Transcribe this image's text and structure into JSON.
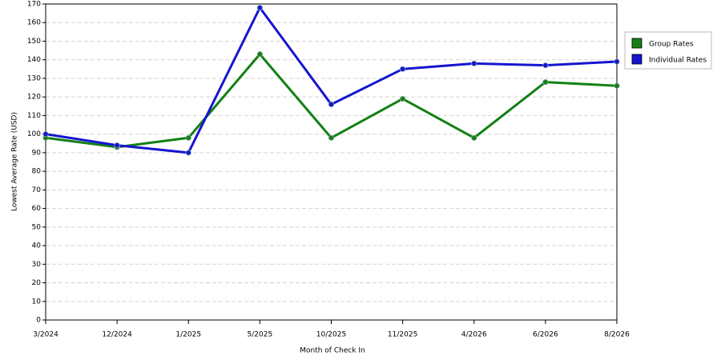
{
  "chart_data": {
    "type": "line",
    "x_label": "Month of Check In",
    "y_label": "Lowest Average Rate (USD)",
    "categories": [
      "3/2024",
      "12/2024",
      "1/2025",
      "5/2025",
      "10/2025",
      "11/2025",
      "4/2026",
      "6/2026",
      "8/2026"
    ],
    "series": [
      {
        "name": "Group Rates",
        "color": "#138013",
        "values": [
          98,
          93,
          98,
          143,
          98,
          119,
          98,
          128,
          126
        ]
      },
      {
        "name": "Individual Rates",
        "color": "#1515d0",
        "values": [
          100,
          94,
          90,
          168,
          116,
          135,
          138,
          137,
          139
        ]
      }
    ],
    "ylim": [
      0,
      170
    ],
    "yticks": [
      0,
      10,
      20,
      30,
      40,
      50,
      60,
      70,
      80,
      90,
      100,
      110,
      120,
      130,
      140,
      150,
      160,
      170
    ],
    "grid": true,
    "legend": "right"
  }
}
